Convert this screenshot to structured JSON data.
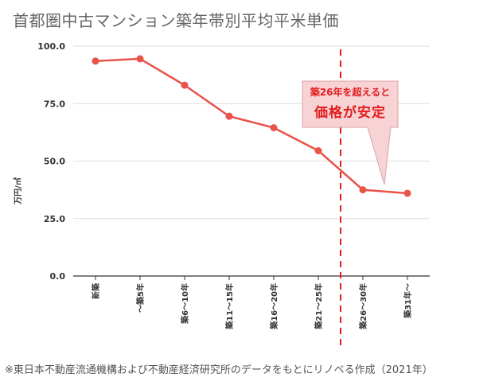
{
  "title": "首都圏中古マンション築年帯別平均平米単価",
  "footnote": "※東日本不動産流通機構および不動産経済研究所のデータをもとにリノベる作成（2021年）",
  "callout": {
    "line1": "築26年を超えると",
    "line2": "価格が安定"
  },
  "colors": {
    "line": "#e8534a",
    "marker": "#e8534a",
    "callout_fill": "#f8d3d5",
    "callout_stroke": "#d9a2a7",
    "callout_text": "#e21c1c",
    "threshold": "#e02020",
    "axis": "#333333",
    "grid": "#dddddd"
  },
  "chart_data": {
    "type": "line",
    "title": "首都圏中古マンション築年帯別平均平米単価",
    "xlabel": "",
    "ylabel": "万円/㎡",
    "ylim": [
      0,
      100
    ],
    "yticks": [
      "0.0",
      "25.0",
      "50.0",
      "75.0",
      "100.0"
    ],
    "ytick_values": [
      0,
      25,
      50,
      75,
      100
    ],
    "categories": [
      "新築",
      "〜築5年",
      "築6〜10年",
      "築11〜15年",
      "築16〜20年",
      "築21〜25年",
      "築26〜30年",
      "築31年〜"
    ],
    "series": [
      {
        "name": "平均平米単価",
        "values": [
          93.5,
          94.5,
          83,
          69.5,
          64.5,
          54.5,
          37.5,
          36
        ]
      }
    ],
    "threshold_between": [
      5,
      6
    ],
    "grid": true
  }
}
